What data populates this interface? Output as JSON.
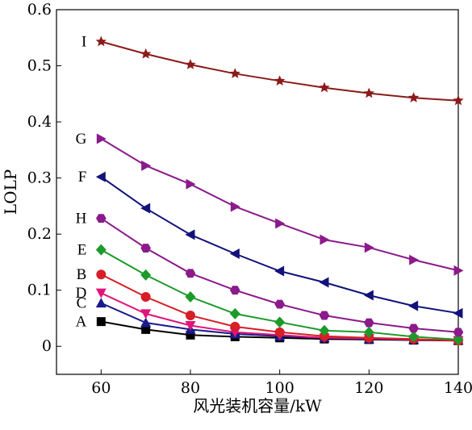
{
  "chart_data": {
    "type": "line",
    "title": "",
    "xlabel": "风光装机容量/kW",
    "ylabel": "LOLP",
    "xlim": [
      50,
      140
    ],
    "ylim": [
      -0.05,
      0.6
    ],
    "xticks": [
      60,
      80,
      100,
      120,
      140
    ],
    "yticks": [
      0,
      0.1,
      0.2,
      0.3,
      0.4,
      0.5,
      0.6
    ],
    "ytick_labels": [
      "0",
      "0.1",
      "0.2",
      "0.3",
      "0.4",
      "0.5",
      "0.6"
    ],
    "grid": false,
    "legend": "inline labels at left of each series",
    "x": [
      60,
      70,
      80,
      90,
      100,
      110,
      120,
      130,
      140
    ],
    "series": [
      {
        "name": "A",
        "color": "#000000",
        "marker": "square",
        "values": [
          0.044,
          0.03,
          0.02,
          0.017,
          0.015,
          0.013,
          0.012,
          0.011,
          0.01
        ]
      },
      {
        "name": "C",
        "color": "#1a1a8c",
        "marker": "triangle-up",
        "values": [
          0.077,
          0.042,
          0.03,
          0.022,
          0.018,
          0.015,
          0.013,
          0.012,
          0.011
        ]
      },
      {
        "name": "D",
        "color": "#e0147a",
        "marker": "triangle-down",
        "values": [
          0.095,
          0.058,
          0.037,
          0.025,
          0.02,
          0.015,
          0.014,
          0.012,
          0.01
        ]
      },
      {
        "name": "B",
        "color": "#d61f26",
        "marker": "circle",
        "values": [
          0.128,
          0.088,
          0.055,
          0.035,
          0.025,
          0.018,
          0.015,
          0.013,
          0.01
        ]
      },
      {
        "name": "E",
        "color": "#1d9a2a",
        "marker": "diamond",
        "values": [
          0.172,
          0.127,
          0.088,
          0.058,
          0.043,
          0.028,
          0.025,
          0.017,
          0.012
        ]
      },
      {
        "name": "H",
        "color": "#8b1a8b",
        "marker": "hexagon",
        "values": [
          0.228,
          0.175,
          0.13,
          0.1,
          0.075,
          0.055,
          0.042,
          0.032,
          0.025
        ]
      },
      {
        "name": "F",
        "color": "#12127a",
        "marker": "triangle-left",
        "values": [
          0.302,
          0.246,
          0.199,
          0.165,
          0.134,
          0.114,
          0.091,
          0.072,
          0.059
        ]
      },
      {
        "name": "G",
        "color": "#8b1a8b",
        "marker": "triangle-right",
        "values": [
          0.37,
          0.322,
          0.289,
          0.249,
          0.219,
          0.19,
          0.176,
          0.154,
          0.135
        ]
      },
      {
        "name": "I",
        "color": "#8b1a1a",
        "marker": "star",
        "values": [
          0.543,
          0.521,
          0.502,
          0.486,
          0.473,
          0.461,
          0.451,
          0.443,
          0.438
        ]
      }
    ]
  }
}
